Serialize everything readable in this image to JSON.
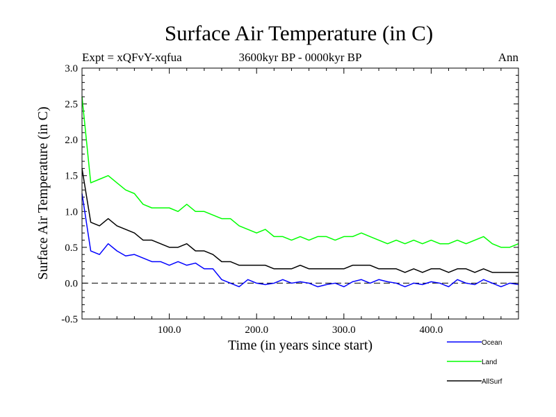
{
  "chart_data": {
    "type": "line",
    "title": "Surface Air Temperature (in C)",
    "subtitle": "3600kyr BP - 0000kyr BP",
    "expt_label": "Expt = xQFvY-xqfua",
    "season_label": "Ann",
    "xlabel": "Time (in years since start)",
    "ylabel": "Surface Air Temperature (in C)",
    "xlim": [
      0,
      500
    ],
    "ylim": [
      -0.5,
      3.0
    ],
    "x_ticks": [
      100,
      200,
      300,
      400
    ],
    "x_tick_labels": [
      "100.0",
      "200.0",
      "300.0",
      "400.0"
    ],
    "y_ticks": [
      -0.5,
      0.0,
      0.5,
      1.0,
      1.5,
      2.0,
      2.5,
      3.0
    ],
    "y_tick_labels": [
      "-0.5",
      "0.0",
      "0.5",
      "1.0",
      "1.5",
      "2.0",
      "2.5",
      "3.0"
    ],
    "reference_line": 0.0,
    "legend_position": "bottom-right, below plot",
    "x": [
      0,
      10,
      20,
      30,
      40,
      50,
      60,
      70,
      80,
      90,
      100,
      110,
      120,
      130,
      140,
      150,
      160,
      170,
      180,
      190,
      200,
      210,
      220,
      230,
      240,
      250,
      260,
      270,
      280,
      290,
      300,
      310,
      320,
      330,
      340,
      350,
      360,
      370,
      380,
      390,
      400,
      410,
      420,
      430,
      440,
      450,
      460,
      470,
      480,
      490,
      500
    ],
    "series": [
      {
        "name": "Ocean",
        "color": "#0000ff",
        "values": [
          1.25,
          0.45,
          0.4,
          0.55,
          0.45,
          0.38,
          0.4,
          0.35,
          0.3,
          0.3,
          0.25,
          0.3,
          0.25,
          0.28,
          0.2,
          0.2,
          0.05,
          0.0,
          -0.05,
          0.05,
          0.0,
          -0.02,
          0.0,
          0.05,
          0.0,
          0.02,
          0.0,
          -0.05,
          -0.02,
          0.0,
          -0.05,
          0.02,
          0.05,
          0.0,
          0.05,
          0.02,
          0.0,
          -0.05,
          0.0,
          -0.02,
          0.02,
          0.0,
          -0.05,
          0.05,
          0.0,
          -0.02,
          0.05,
          0.0,
          -0.05,
          0.0,
          -0.02
        ]
      },
      {
        "name": "Land",
        "color": "#00ff00",
        "values": [
          2.6,
          1.4,
          1.45,
          1.5,
          1.4,
          1.3,
          1.25,
          1.1,
          1.05,
          1.05,
          1.05,
          1.0,
          1.1,
          1.0,
          1.0,
          0.95,
          0.9,
          0.9,
          0.8,
          0.75,
          0.7,
          0.75,
          0.65,
          0.65,
          0.6,
          0.65,
          0.6,
          0.65,
          0.65,
          0.6,
          0.65,
          0.65,
          0.7,
          0.65,
          0.6,
          0.55,
          0.6,
          0.55,
          0.6,
          0.55,
          0.6,
          0.55,
          0.55,
          0.6,
          0.55,
          0.6,
          0.65,
          0.55,
          0.5,
          0.5,
          0.55
        ]
      },
      {
        "name": "AllSurf",
        "color": "#000000",
        "values": [
          1.6,
          0.85,
          0.8,
          0.9,
          0.8,
          0.75,
          0.7,
          0.6,
          0.6,
          0.55,
          0.5,
          0.5,
          0.55,
          0.45,
          0.45,
          0.4,
          0.3,
          0.3,
          0.25,
          0.25,
          0.25,
          0.25,
          0.2,
          0.2,
          0.2,
          0.25,
          0.2,
          0.2,
          0.2,
          0.2,
          0.2,
          0.25,
          0.25,
          0.25,
          0.2,
          0.2,
          0.2,
          0.15,
          0.2,
          0.15,
          0.2,
          0.2,
          0.15,
          0.2,
          0.2,
          0.15,
          0.2,
          0.15,
          0.15,
          0.15,
          0.15
        ]
      }
    ]
  }
}
